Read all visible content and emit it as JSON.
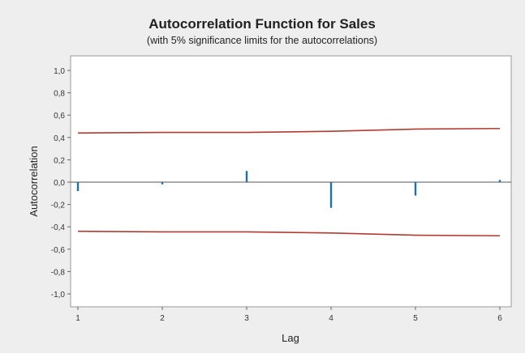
{
  "chart_data": {
    "type": "bar",
    "title": "Autocorrelation Function for Sales",
    "subtitle": "(with 5% significance limits for the autocorrelations)",
    "xlabel": "Lag",
    "ylabel": "Autocorrelation",
    "x_ticks": [
      "1",
      "2",
      "3",
      "4",
      "5",
      "6"
    ],
    "y_ticks": [
      "1,0",
      "0,8",
      "0,6",
      "0,4",
      "0,2",
      "0,0",
      "-0,2",
      "-0,4",
      "-0,6",
      "-0,8",
      "-1,0"
    ],
    "ylim": [
      -1.0,
      1.0
    ],
    "xlim": [
      1,
      6
    ],
    "lags": [
      1,
      2,
      3,
      4,
      5,
      6
    ],
    "values": [
      -0.08,
      -0.02,
      0.1,
      -0.23,
      -0.12,
      0.02
    ],
    "upper_limit": [
      0.44,
      0.445,
      0.445,
      0.455,
      0.475,
      0.48
    ],
    "lower_limit": [
      -0.44,
      -0.445,
      -0.445,
      -0.455,
      -0.475,
      -0.48
    ],
    "grid": false,
    "colors": {
      "bars": "#1f6fb5",
      "limits": "#b23a32",
      "background": "#eeeeee",
      "plot_area": "#ffffff"
    }
  }
}
